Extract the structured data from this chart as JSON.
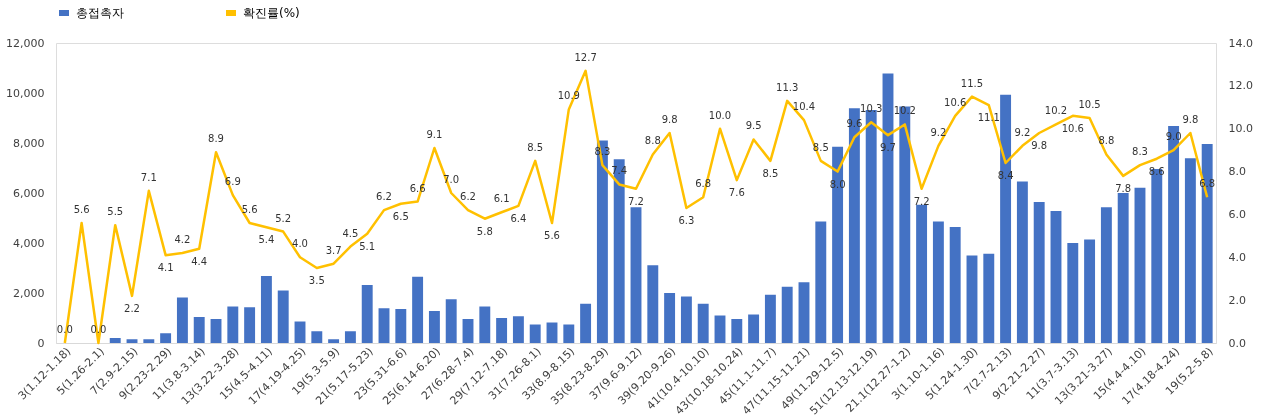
{
  "chart_data": {
    "type": "bar",
    "categories": [
      "3(1.12-1.18)",
      null,
      "5(1.26-2.1)",
      null,
      "7(2.9-2.15)",
      null,
      "9(2.23-2.29)",
      null,
      "11(3.8-3.14)",
      null,
      "13(3.22-3.28)",
      null,
      "15(4.5-4.11)",
      null,
      "17(4.19-4.25)",
      null,
      "19(5.3-5.9)",
      null,
      "21(5.17-5.23)",
      null,
      "23(5.31-6.6)",
      null,
      "25(6.14-6.20)",
      null,
      "27(6.28-7.4)",
      null,
      "29(7.12-7.18)",
      null,
      "31(7.26-8.1)",
      null,
      "33(8.9-8.15)",
      null,
      "35(8.23-8.29)",
      null,
      "37(9.6-9.12)",
      null,
      "39(9.20-9.26)",
      null,
      "41(10.4-10.10)",
      null,
      "43(10.18-10.24)",
      null,
      "45(11.1-11.7)",
      null,
      "47(11.15-11.21)",
      null,
      "49(11.29-12.5)",
      null,
      "51(12.13-12.19)",
      null,
      "21.1(12.27-1.2)",
      null,
      "3(1.10-1.16)",
      null,
      "5(1.24-1.30)",
      null,
      "7(2.7-2.13)",
      null,
      "9(2.21-2.27)",
      null,
      "11(3.7-3.13)",
      null,
      "13(3.21-3.27)",
      null,
      "15(4.4-4.10)",
      null,
      "17(4.18-4.24)",
      null,
      "19(5.2-5.8)"
    ],
    "series": [
      {
        "name": "총접촉자",
        "color": "#4472c4",
        "values": [
          0,
          0,
          0,
          200,
          150,
          150,
          390,
          1820,
          1040,
          960,
          1460,
          1430,
          2680,
          2100,
          860,
          470,
          150,
          470,
          2320,
          1390,
          1360,
          2650,
          1280,
          1750,
          960,
          1460,
          1000,
          1070,
          740,
          820,
          740,
          1570,
          8100,
          7350,
          5430,
          3110,
          2000,
          1860,
          1570,
          1100,
          960,
          1140,
          1930,
          2250,
          2430,
          4860,
          7850,
          9390,
          9320,
          10780,
          9460,
          5530,
          4860,
          4640,
          3500,
          3570,
          9930,
          6460,
          5640,
          5280,
          4000,
          4140,
          5430,
          6000,
          6210,
          6960,
          8680,
          7390,
          7960
        ]
      },
      {
        "name": "확진률(%)",
        "type": "line",
        "axis": "y2",
        "color": "#ffc000",
        "values": [
          0.0,
          5.6,
          0.0,
          5.5,
          2.2,
          7.1,
          4.1,
          4.2,
          4.4,
          8.9,
          6.9,
          5.6,
          5.4,
          5.2,
          4.0,
          3.5,
          3.7,
          4.5,
          5.1,
          6.2,
          6.5,
          6.6,
          9.1,
          7.0,
          6.2,
          5.8,
          6.1,
          6.4,
          8.5,
          5.6,
          10.9,
          12.7,
          8.3,
          7.4,
          7.2,
          8.8,
          9.8,
          6.3,
          6.8,
          10.0,
          7.6,
          9.5,
          8.5,
          11.3,
          10.4,
          8.5,
          8.0,
          9.6,
          10.3,
          9.7,
          10.2,
          7.2,
          9.2,
          10.6,
          11.5,
          11.1,
          8.4,
          9.2,
          9.8,
          10.2,
          10.6,
          10.5,
          8.8,
          7.8,
          8.3,
          8.6,
          9.0,
          9.8,
          6.8
        ],
        "value_labels": [
          "0.0",
          "5.6",
          "0.0",
          "5.5",
          "2.2",
          "7.1",
          "4.1",
          "4.2",
          "4.4",
          "8.9",
          "6.9",
          "5.6",
          "5.4",
          "5.2",
          "4.0",
          "3.5",
          "3.7",
          "4.5",
          "5.1",
          "6.2",
          "6.5",
          "6.6",
          "9.1",
          "7.0",
          "6.2",
          "5.8",
          "6.1",
          "6.4",
          "8.5",
          "5.6",
          "10.9",
          "12.7",
          "8.3",
          "7.4",
          "7.2",
          "8.8",
          "9.8",
          "6.3",
          "6.8",
          "10.0",
          "7.6",
          "9.5",
          "8.5",
          "11.3",
          "10.4",
          "8.5",
          "8.0",
          "9.6",
          "10.3",
          "9.7",
          "10.2",
          "7.2",
          "9.2",
          "10.6",
          "11.5",
          "11.1",
          "8.4",
          "9.2",
          "9.8",
          "10.2",
          "10.6",
          "10.5",
          "8.8",
          "7.8",
          "8.3",
          "8.6",
          "9.0",
          "9.8",
          "6.8"
        ]
      }
    ],
    "ylim": [
      0,
      12000
    ],
    "yticks": [
      {
        "value": 0,
        "label": "0"
      },
      {
        "value": 2000,
        "label": "2,000"
      },
      {
        "value": 4000,
        "label": "4,000"
      },
      {
        "value": 6000,
        "label": "6,000"
      },
      {
        "value": 8000,
        "label": "8,000"
      },
      {
        "value": 10000,
        "label": "10,000"
      },
      {
        "value": 12000,
        "label": "12,000"
      }
    ],
    "y2lim": [
      0,
      14
    ],
    "y2ticks": [
      {
        "value": 0,
        "label": "0.0"
      },
      {
        "value": 2,
        "label": "2.0"
      },
      {
        "value": 4,
        "label": "4.0"
      },
      {
        "value": 6,
        "label": "6.0"
      },
      {
        "value": 8,
        "label": "8.0"
      },
      {
        "value": 10,
        "label": "10.0"
      },
      {
        "value": 12,
        "label": "12.0"
      },
      {
        "value": 14,
        "label": "14.0"
      }
    ],
    "legend": "top",
    "grid": false,
    "marker": "none",
    "line_style": "solid"
  }
}
